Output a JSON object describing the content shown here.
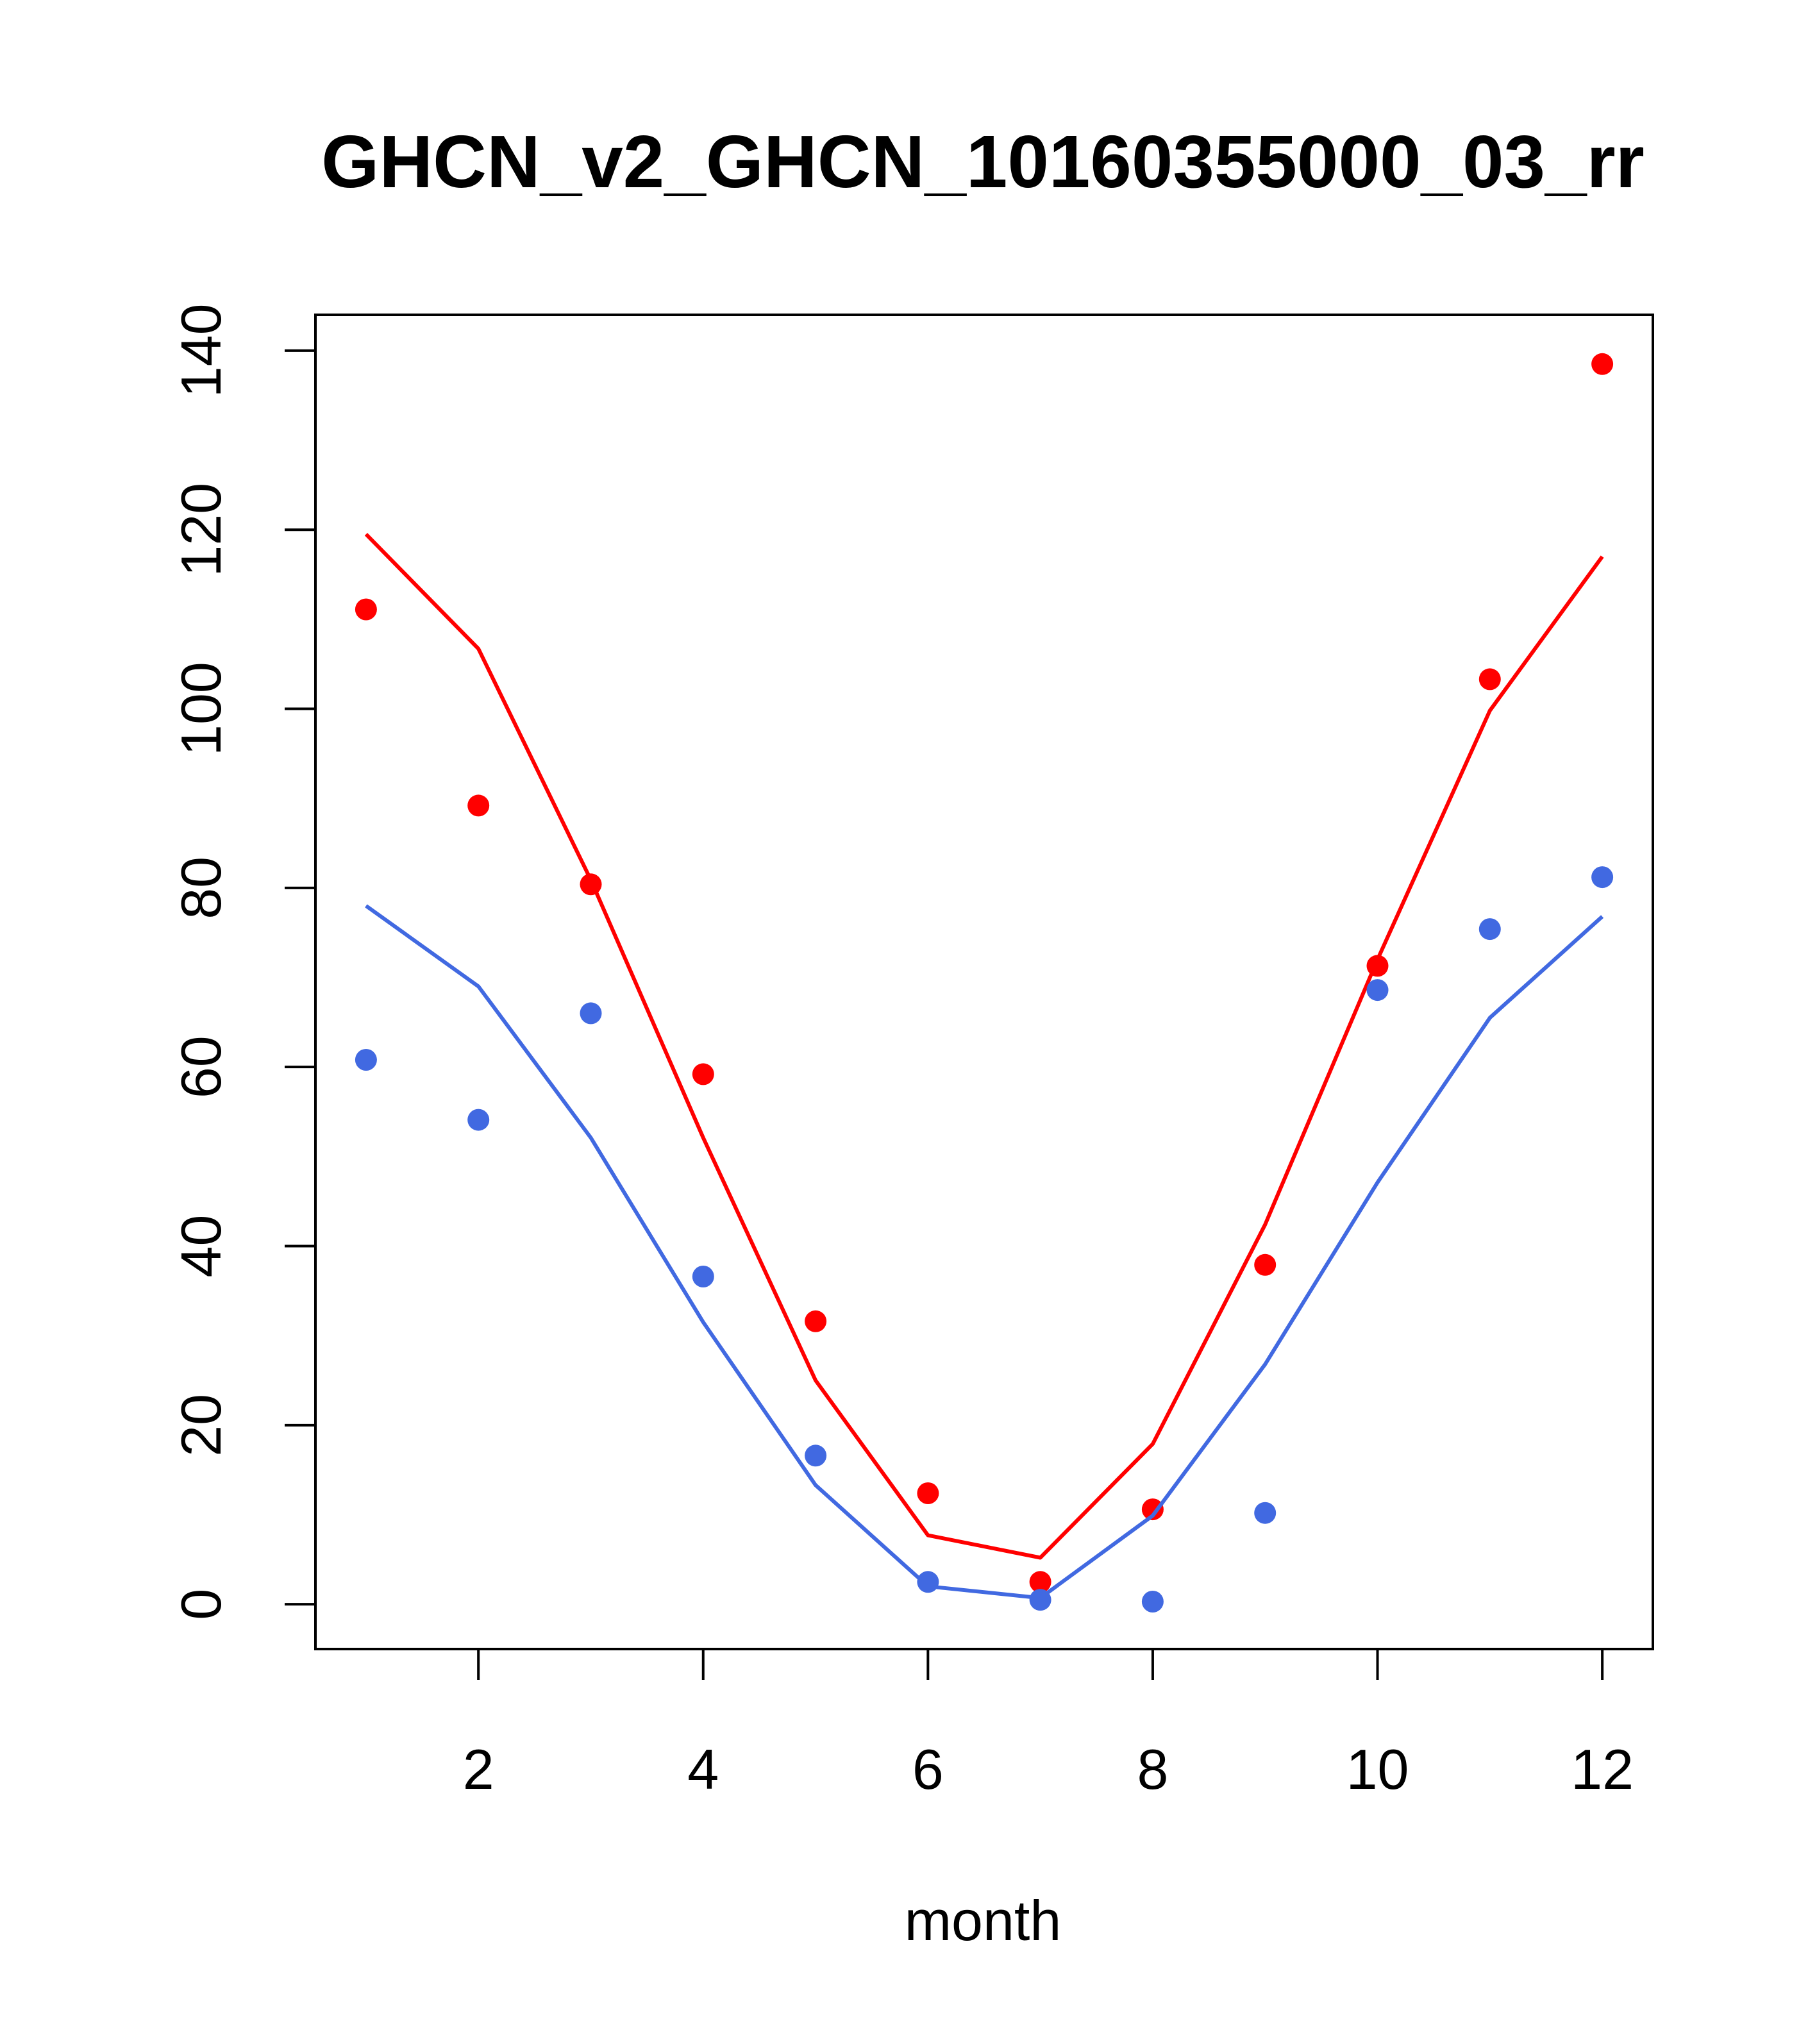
{
  "chart_data": {
    "type": "line",
    "title": "GHCN_v2_GHCN_10160355000_03_rr",
    "xlabel": "month",
    "ylabel": "",
    "xlim": [
      0.55,
      12.45
    ],
    "ylim": [
      -5,
      144
    ],
    "x_ticks": [
      2,
      4,
      6,
      8,
      10,
      12
    ],
    "y_ticks": [
      0,
      20,
      40,
      60,
      80,
      100,
      120,
      140
    ],
    "grid": false,
    "x": [
      1,
      2,
      3,
      4,
      5,
      6,
      7,
      8,
      9,
      10,
      11,
      12
    ],
    "series": [
      {
        "color": "#ff0000",
        "line": [
          119.5,
          106.7,
          80.9,
          52.1,
          25.0,
          7.7,
          5.2,
          17.9,
          42.4,
          72.0,
          99.8,
          117.0
        ],
        "points": [
          111.1,
          89.2,
          80.4,
          59.2,
          31.6,
          12.4,
          2.5,
          10.6,
          37.9,
          71.3,
          103.3,
          138.5
        ]
      },
      {
        "color": "#4169e1",
        "line": [
          78.0,
          69.0,
          52.1,
          31.5,
          13.3,
          2.0,
          0.7,
          9.9,
          26.8,
          47.1,
          65.5,
          76.8
        ],
        "points": [
          60.8,
          54.1,
          66.0,
          36.6,
          16.6,
          2.5,
          0.5,
          0.3,
          10.2,
          68.6,
          75.4,
          81.2
        ]
      }
    ]
  }
}
